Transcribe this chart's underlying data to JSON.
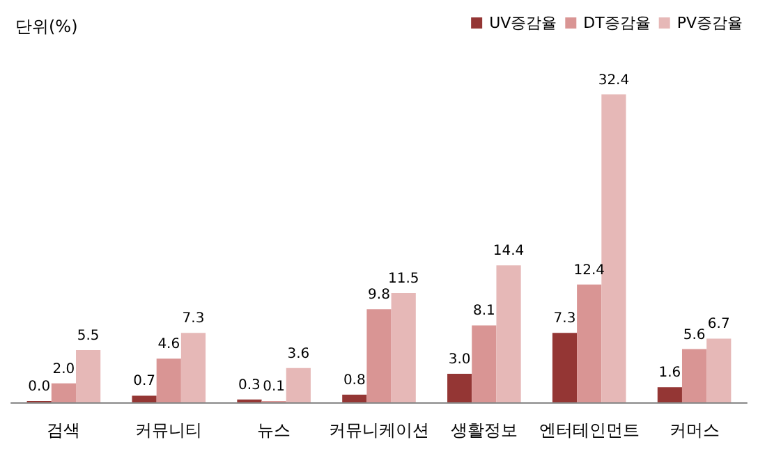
{
  "chart_data": {
    "type": "bar",
    "ylabel": "단위(%)",
    "categories": [
      "검색",
      "커뮤니티",
      "뉴스",
      "커뮤니케이션",
      "생활정보",
      "엔터테인먼트",
      "커머스"
    ],
    "series": [
      {
        "name": "UV증감율",
        "color": "#943634",
        "values": [
          0.0,
          0.7,
          0.3,
          0.8,
          3.0,
          7.3,
          1.6
        ],
        "value_labels": [
          "0.0",
          "0.7",
          "0.3",
          "0.8",
          "3.0",
          "7.3",
          "1.6"
        ]
      },
      {
        "name": "DT증감율",
        "color": "#d99594",
        "values": [
          2.0,
          4.6,
          0.1,
          9.8,
          8.1,
          12.4,
          5.6
        ],
        "value_labels": [
          "2.0",
          "4.6",
          "0.1",
          "9.8",
          "8.1",
          "12.4",
          "5.6"
        ]
      },
      {
        "name": "PV증감율",
        "color": "#e6b8b7",
        "values": [
          5.5,
          7.3,
          3.6,
          11.5,
          14.4,
          32.4,
          6.7
        ],
        "value_labels": [
          "5.5",
          "7.3",
          "3.6",
          "11.5",
          "14.4",
          "32.4",
          "6.7"
        ]
      }
    ],
    "legend": "top right"
  }
}
